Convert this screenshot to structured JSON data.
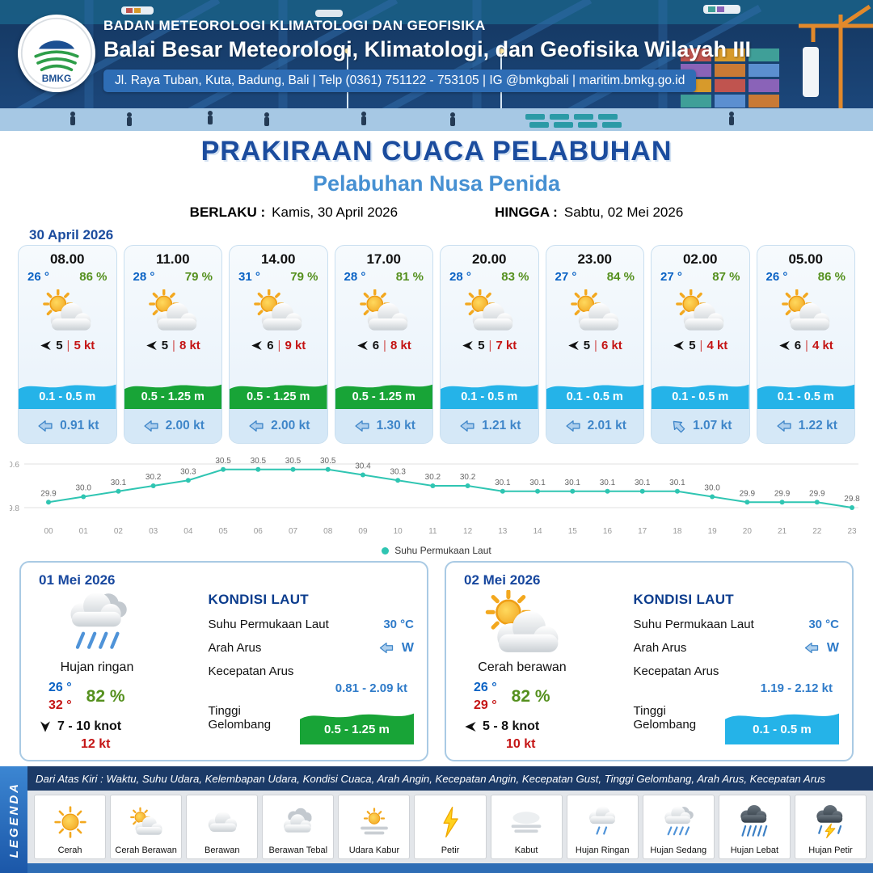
{
  "header": {
    "logo_text": "BMKG",
    "org": "BADAN METEOROLOGI KLIMATOLOGI DAN GEOFISIKA",
    "office": "Balai Besar Meteorologi, Klimatologi, dan Geofisika Wilayah III",
    "address": "Jl. Raya Tuban, Kuta, Badung, Bali | Telp (0361) 751122 - 753105 | IG @bmkgbali | maritim.bmkg.go.id"
  },
  "title": {
    "main": "PRAKIRAAN CUACA PELABUHAN",
    "sub": "Pelabuhan Nusa Penida",
    "berlaku_label": "BERLAKU :",
    "berlaku_value": "Kamis, 30 April 2026",
    "hingga_label": "HINGGA :",
    "hingga_value": "Sabtu, 02 Mei 2026"
  },
  "forecast_date": "30 April 2026",
  "ui": {
    "wind_separator": "|"
  },
  "hourly": [
    {
      "time": "08.00",
      "temp": "26 °",
      "rh": "86 %",
      "condition": "Cerah Berawan",
      "wind_arrow": "left",
      "wind_speed": "5",
      "gust": "5 kt",
      "wave": "0.1 - 0.5 m",
      "wave_color": "cyan",
      "current_arrow": "left",
      "current": "0.91 kt"
    },
    {
      "time": "11.00",
      "temp": "28 °",
      "rh": "79 %",
      "condition": "Cerah Berawan",
      "wind_arrow": "left",
      "wind_speed": "5",
      "gust": "8 kt",
      "wave": "0.5 - 1.25 m",
      "wave_color": "green",
      "current_arrow": "left",
      "current": "2.00 kt"
    },
    {
      "time": "14.00",
      "temp": "31 °",
      "rh": "79 %",
      "condition": "Cerah Berawan",
      "wind_arrow": "left",
      "wind_speed": "6",
      "gust": "9 kt",
      "wave": "0.5 - 1.25 m",
      "wave_color": "green",
      "current_arrow": "left",
      "current": "2.00 kt"
    },
    {
      "time": "17.00",
      "temp": "28 °",
      "rh": "81 %",
      "condition": "Cerah Berawan",
      "wind_arrow": "left",
      "wind_speed": "6",
      "gust": "8 kt",
      "wave": "0.5 - 1.25 m",
      "wave_color": "green",
      "current_arrow": "left",
      "current": "1.30 kt"
    },
    {
      "time": "20.00",
      "temp": "28 °",
      "rh": "83 %",
      "condition": "Cerah Berawan",
      "wind_arrow": "left",
      "wind_speed": "5",
      "gust": "7 kt",
      "wave": "0.1 - 0.5 m",
      "wave_color": "cyan",
      "current_arrow": "left",
      "current": "1.21 kt"
    },
    {
      "time": "23.00",
      "temp": "27 °",
      "rh": "84 %",
      "condition": "Cerah Berawan",
      "wind_arrow": "left",
      "wind_speed": "5",
      "gust": "6 kt",
      "wave": "0.1 - 0.5 m",
      "wave_color": "cyan",
      "current_arrow": "left",
      "current": "2.01 kt"
    },
    {
      "time": "02.00",
      "temp": "27 °",
      "rh": "87 %",
      "condition": "Cerah Berawan",
      "wind_arrow": "left",
      "wind_speed": "5",
      "gust": "4 kt",
      "wave": "0.1 - 0.5 m",
      "wave_color": "cyan",
      "current_arrow": "up-left",
      "current": "1.07 kt"
    },
    {
      "time": "05.00",
      "temp": "26 °",
      "rh": "86 %",
      "condition": "Cerah Berawan",
      "wind_arrow": "left",
      "wind_speed": "6",
      "gust": "4 kt",
      "wave": "0.1 - 0.5 m",
      "wave_color": "cyan",
      "current_arrow": "left",
      "current": "1.22 kt"
    }
  ],
  "chart_data": {
    "type": "line",
    "legend": "Suhu Permukaan Laut",
    "x": [
      "00",
      "01",
      "02",
      "03",
      "04",
      "05",
      "06",
      "07",
      "08",
      "09",
      "10",
      "11",
      "12",
      "13",
      "14",
      "15",
      "16",
      "17",
      "18",
      "19",
      "20",
      "21",
      "22",
      "23"
    ],
    "values": [
      29.9,
      30.0,
      30.1,
      30.2,
      30.3,
      30.5,
      30.5,
      30.5,
      30.5,
      30.4,
      30.3,
      30.2,
      30.2,
      30.1,
      30.1,
      30.1,
      30.1,
      30.1,
      30.1,
      30.0,
      29.9,
      29.9,
      29.9,
      29.8
    ],
    "ylim": [
      29.8,
      30.6
    ],
    "xlabel": "",
    "ylabel": "",
    "grid": "horizontal",
    "legend_position": "bottom",
    "line_color": "#2fc5b2"
  },
  "daily": [
    {
      "date": "01 Mei 2026",
      "condition": "Hujan ringan",
      "temp_min": "26 °",
      "temp_max": "32 °",
      "rh": "82 %",
      "wind_arrow": "down",
      "wind": "7 - 10 knot",
      "gust": "12 kt",
      "sea": {
        "title": "KONDISI LAUT",
        "sst_label": "Suhu Permukaan Laut",
        "sst": "30 °C",
        "dir_label": "Arah Arus",
        "dir": "W",
        "current_label": "Kecepatan Arus",
        "current": "0.81 - 2.09 kt",
        "wave_label": "Tinggi Gelombang",
        "wave": "0.5 - 1.25 m",
        "wave_color": "green"
      }
    },
    {
      "date": "02 Mei 2026",
      "condition": "Cerah berawan",
      "temp_min": "26 °",
      "temp_max": "29 °",
      "rh": "82 %",
      "wind_arrow": "left",
      "wind": "5 - 8 knot",
      "gust": "10 kt",
      "sea": {
        "title": "KONDISI LAUT",
        "sst_label": "Suhu Permukaan Laut",
        "sst": "30 °C",
        "dir_label": "Arah Arus",
        "dir": "W",
        "current_label": "Kecepatan Arus",
        "current": "1.19 - 2.12 kt",
        "wave_label": "Tinggi Gelombang",
        "wave": "0.1 - 0.5 m",
        "wave_color": "cyan"
      }
    }
  ],
  "legend": {
    "title": "LEGENDA",
    "note": "Dari Atas Kiri : Waktu, Suhu Udara, Kelembapan Udara, Kondisi Cuaca, Arah Angin, Kecepatan Angin, Kecepatan Gust, Tinggi Gelombang, Arah Arus, Kecepatan Arus",
    "items": [
      {
        "label": "Cerah",
        "icon": "sun"
      },
      {
        "label": "Cerah Berawan",
        "icon": "cloud-sun"
      },
      {
        "label": "Berawan",
        "icon": "cloud"
      },
      {
        "label": "Berawan Tebal",
        "icon": "cloud-thick"
      },
      {
        "label": "Udara Kabur",
        "icon": "haze"
      },
      {
        "label": "Petir",
        "icon": "lightning"
      },
      {
        "label": "Kabut",
        "icon": "fog"
      },
      {
        "label": "Hujan Ringan",
        "icon": "rain-light"
      },
      {
        "label": "Hujan Sedang",
        "icon": "rain-mid"
      },
      {
        "label": "Hujan Lebat",
        "icon": "rain-heavy"
      },
      {
        "label": "Hujan Petir",
        "icon": "rain-thunder"
      }
    ]
  },
  "colors": {
    "header_navy": "#16375f",
    "title_blue": "#1b4c9e",
    "subtitle_blue": "#4690d2",
    "temp_blue": "#0a62c4",
    "humidity_green": "#55901e",
    "gust_red": "#c41414",
    "wave_cyan": "#25b3e8",
    "wave_green": "#18a437",
    "current_blue": "#3f86c9",
    "chart_line_teal": "#2fc5b2"
  }
}
